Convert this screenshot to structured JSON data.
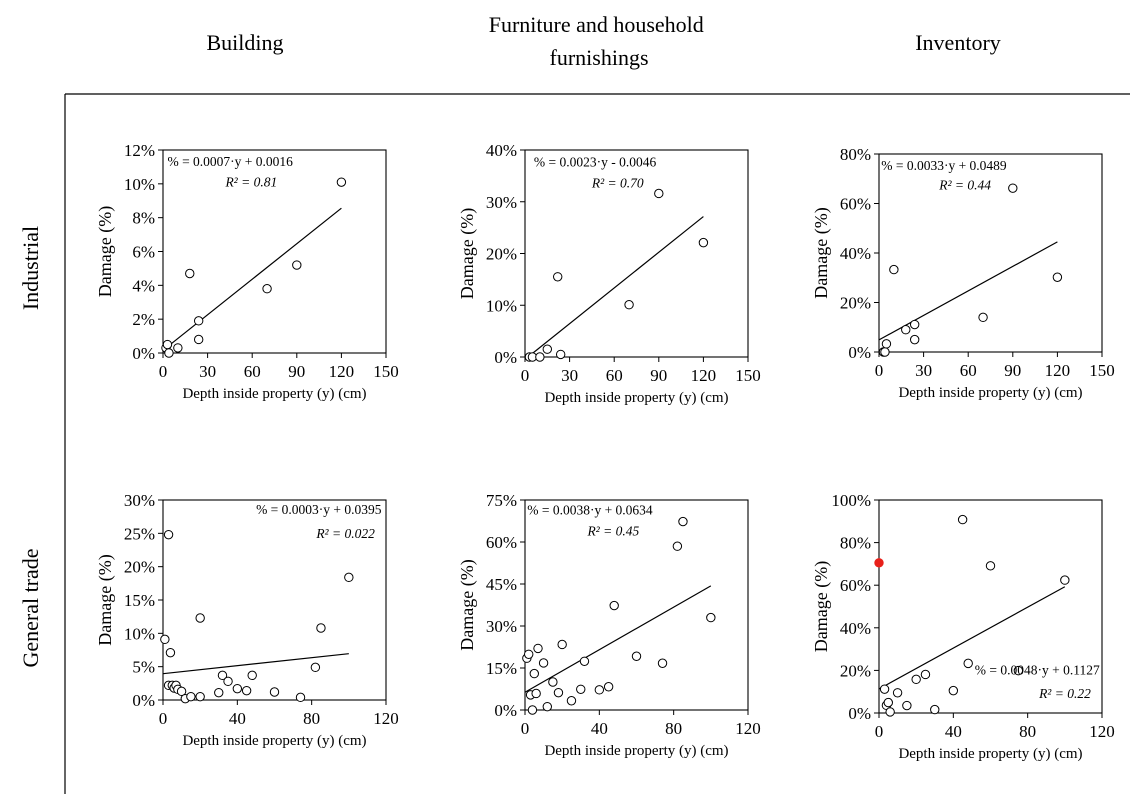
{
  "columns": [
    "Building",
    "Furniture and household furnishings",
    "Inventory"
  ],
  "column_lines": [
    [
      "Building"
    ],
    [
      "Furniture and household",
      "furnishings"
    ],
    [
      "Inventory"
    ]
  ],
  "rows": [
    "Industrial",
    "General trade"
  ],
  "chart_data": [
    {
      "type": "scatter",
      "row": "Industrial",
      "column": "Building",
      "xlabel": "Depth inside property (y) (cm)",
      "ylabel": "Damage (%)",
      "xlim": [
        0,
        150
      ],
      "ylim": [
        0,
        0.12
      ],
      "xticks": [
        0,
        30,
        60,
        90,
        120,
        150
      ],
      "yticks": [
        0,
        0.02,
        0.04,
        0.06,
        0.08,
        0.1,
        0.12
      ],
      "ytick_labels": [
        "0%",
        "2%",
        "4%",
        "6%",
        "8%",
        "10%",
        "12%"
      ],
      "points": [
        [
          2,
          0.003
        ],
        [
          3,
          0.005
        ],
        [
          4,
          0.0
        ],
        [
          10,
          0.003
        ],
        [
          18,
          0.047
        ],
        [
          24,
          0.019
        ],
        [
          24,
          0.008
        ],
        [
          70,
          0.038
        ],
        [
          90,
          0.052
        ],
        [
          120,
          0.101
        ]
      ],
      "trendline": {
        "slope": 0.0007,
        "intercept": 0.0016,
        "x_range": [
          0,
          120
        ]
      },
      "equation": "% = 0.0007·y + 0.0016",
      "r2_label": "R² = 0.81",
      "legend_position": "top-left"
    },
    {
      "type": "scatter",
      "row": "Industrial",
      "column": "Furniture and household furnishings",
      "xlabel": "Depth inside property (y) (cm)",
      "ylabel": "Damage (%)",
      "xlim": [
        0,
        150
      ],
      "ylim": [
        0,
        0.4
      ],
      "xticks": [
        0,
        30,
        60,
        90,
        120,
        150
      ],
      "yticks": [
        0,
        0.1,
        0.2,
        0.3,
        0.4
      ],
      "ytick_labels": [
        "0%",
        "10%",
        "20%",
        "30%",
        "40%"
      ],
      "points": [
        [
          3,
          0.0
        ],
        [
          5,
          0.0
        ],
        [
          10,
          0.0
        ],
        [
          15,
          0.015
        ],
        [
          22,
          0.155
        ],
        [
          24,
          0.005
        ],
        [
          70,
          0.101
        ],
        [
          90,
          0.316
        ],
        [
          120,
          0.221
        ]
      ],
      "trendline": {
        "slope": 0.0023,
        "intercept": -0.0046,
        "x_range": [
          2,
          120
        ]
      },
      "equation": "% = 0.0023·y - 0.0046",
      "r2_label": "R² = 0.70",
      "legend_position": "top-left"
    },
    {
      "type": "scatter",
      "row": "Industrial",
      "column": "Inventory",
      "xlabel": "Depth inside property (y) (cm)",
      "ylabel": "Damage (%)",
      "xlim": [
        0,
        150
      ],
      "ylim": [
        0,
        0.8
      ],
      "xticks": [
        0,
        30,
        60,
        90,
        120,
        150
      ],
      "yticks": [
        0,
        0.2,
        0.4,
        0.6,
        0.8
      ],
      "ytick_labels": [
        "0%",
        "20%",
        "40%",
        "60%",
        "80%"
      ],
      "points": [
        [
          3,
          0.0
        ],
        [
          4,
          0.0
        ],
        [
          5,
          0.033
        ],
        [
          10,
          0.333
        ],
        [
          18,
          0.09
        ],
        [
          24,
          0.111
        ],
        [
          24,
          0.05
        ],
        [
          70,
          0.14
        ],
        [
          90,
          0.662
        ],
        [
          120,
          0.302
        ]
      ],
      "trendline": {
        "slope": 0.0033,
        "intercept": 0.0489,
        "x_range": [
          0,
          120
        ]
      },
      "equation": "% = 0.0033·y + 0.0489",
      "r2_label": "R² = 0.44",
      "legend_position": "top-left"
    },
    {
      "type": "scatter",
      "row": "General trade",
      "column": "Building",
      "xlabel": "Depth inside property (y) (cm)",
      "ylabel": "Damage (%)",
      "xlim": [
        0,
        120
      ],
      "ylim": [
        0,
        0.3
      ],
      "xticks": [
        0,
        40,
        80,
        120
      ],
      "yticks": [
        0,
        0.05,
        0.1,
        0.15,
        0.2,
        0.25,
        0.3
      ],
      "ytick_labels": [
        "0%",
        "5%",
        "10%",
        "15%",
        "20%",
        "25%",
        "30%"
      ],
      "points": [
        [
          1,
          0.091
        ],
        [
          3,
          0.248
        ],
        [
          3,
          0.022
        ],
        [
          4,
          0.071
        ],
        [
          5,
          0.022
        ],
        [
          6,
          0.018
        ],
        [
          7,
          0.022
        ],
        [
          8,
          0.016
        ],
        [
          10,
          0.013
        ],
        [
          12,
          0.002
        ],
        [
          15,
          0.005
        ],
        [
          20,
          0.005
        ],
        [
          20,
          0.123
        ],
        [
          30,
          0.011
        ],
        [
          32,
          0.037
        ],
        [
          35,
          0.028
        ],
        [
          40,
          0.017
        ],
        [
          45,
          0.014
        ],
        [
          48,
          0.037
        ],
        [
          60,
          0.012
        ],
        [
          74,
          0.004
        ],
        [
          82,
          0.049
        ],
        [
          85,
          0.108
        ],
        [
          100,
          0.184
        ]
      ],
      "trendline": {
        "slope": 0.0003,
        "intercept": 0.0395,
        "x_range": [
          0,
          100
        ]
      },
      "equation": "% = 0.0003·y + 0.0395",
      "r2_label": "R² = 0.022",
      "legend_position": "top-right"
    },
    {
      "type": "scatter",
      "row": "General trade",
      "column": "Furniture and household furnishings",
      "xlabel": "Depth inside property (y) (cm)",
      "ylabel": "Damage (%)",
      "xlim": [
        0,
        120
      ],
      "ylim": [
        0,
        0.75
      ],
      "xticks": [
        0,
        40,
        80,
        120
      ],
      "yticks": [
        0,
        0.15,
        0.3,
        0.45,
        0.6,
        0.75
      ],
      "ytick_labels": [
        "0%",
        "15%",
        "30%",
        "45%",
        "60%",
        "75%"
      ],
      "points": [
        [
          1,
          0.185
        ],
        [
          2,
          0.199
        ],
        [
          3,
          0.054
        ],
        [
          4,
          0.0
        ],
        [
          5,
          0.13
        ],
        [
          6,
          0.059
        ],
        [
          7,
          0.22
        ],
        [
          10,
          0.168
        ],
        [
          12,
          0.012
        ],
        [
          15,
          0.1
        ],
        [
          18,
          0.062
        ],
        [
          20,
          0.234
        ],
        [
          25,
          0.033
        ],
        [
          30,
          0.074
        ],
        [
          32,
          0.174
        ],
        [
          40,
          0.072
        ],
        [
          45,
          0.083
        ],
        [
          48,
          0.373
        ],
        [
          60,
          0.192
        ],
        [
          74,
          0.167
        ],
        [
          82,
          0.585
        ],
        [
          85,
          0.673
        ],
        [
          100,
          0.33
        ]
      ],
      "trendline": {
        "slope": 0.0038,
        "intercept": 0.0634,
        "x_range": [
          0,
          100
        ]
      },
      "equation": "% = 0.0038·y + 0.0634",
      "r2_label": "R² = 0.45",
      "legend_position": "top-left"
    },
    {
      "type": "scatter",
      "row": "General trade",
      "column": "Inventory",
      "xlabel": "Depth inside property (y) (cm)",
      "ylabel": "Damage (%)",
      "xlim": [
        0,
        120
      ],
      "ylim": [
        0,
        1.0
      ],
      "xticks": [
        0,
        40,
        80,
        120
      ],
      "yticks": [
        0,
        0.2,
        0.4,
        0.6,
        0.8,
        1.0
      ],
      "ytick_labels": [
        "0%",
        "20%",
        "40%",
        "60%",
        "80%",
        "100%"
      ],
      "points": [
        [
          3,
          0.112
        ],
        [
          4,
          0.036
        ],
        [
          5,
          0.049
        ],
        [
          6,
          0.005
        ],
        [
          10,
          0.095
        ],
        [
          15,
          0.035
        ],
        [
          20,
          0.158
        ],
        [
          25,
          0.181
        ],
        [
          30,
          0.016
        ],
        [
          40,
          0.105
        ],
        [
          45,
          0.908
        ],
        [
          48,
          0.233
        ],
        [
          60,
          0.691
        ],
        [
          75,
          0.199
        ],
        [
          100,
          0.624
        ]
      ],
      "highlight_points": [
        [
          0,
          0.705
        ]
      ],
      "highlight_color": "#e8201a",
      "trendline": {
        "slope": 0.0048,
        "intercept": 0.1127,
        "x_range": [
          0,
          100
        ]
      },
      "equation": "% = 0.0048·y + 0.1127",
      "r2_label": "R² = 0.22",
      "legend_position": "bottom-right"
    }
  ]
}
